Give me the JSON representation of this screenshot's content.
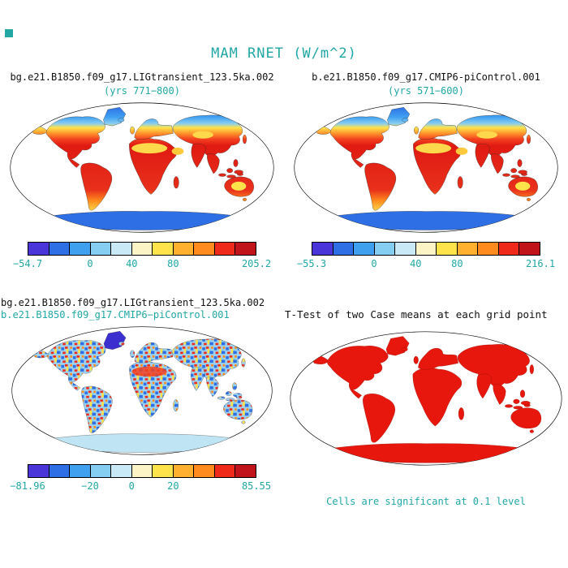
{
  "figure": {
    "title": "MAM RNET (W/m^2)",
    "accent_color": "#21a7a4",
    "land_red": "#e8170d"
  },
  "colorbar_colors": [
    "#4A35D9",
    "#2E6FE6",
    "#3FA0F0",
    "#86CDF2",
    "#C9E9F6",
    "#FCF4C5",
    "#FFE34B",
    "#FFB02E",
    "#FF8A1E",
    "#EF2A1B",
    "#C0131A"
  ],
  "panels": {
    "lig": {
      "title": "bg.e21.B1850.f09_g17.LIGtransient_123.5ka.002",
      "subtitle": "(yrs 771−800)",
      "ticks": [
        {
          "label": "−54.7",
          "pos": 0
        },
        {
          "label": "0",
          "pos": 27.3
        },
        {
          "label": "40",
          "pos": 45.5
        },
        {
          "label": "80",
          "pos": 63.6
        },
        {
          "label": "205.2",
          "pos": 100
        }
      ]
    },
    "pic": {
      "title": "b.e21.B1850.f09_g17.CMIP6-piControl.001",
      "subtitle": "(yrs 571−600)",
      "ticks": [
        {
          "label": "−55.3",
          "pos": 0
        },
        {
          "label": "0",
          "pos": 27.3
        },
        {
          "label": "40",
          "pos": 45.5
        },
        {
          "label": "80",
          "pos": 63.6
        },
        {
          "label": "216.1",
          "pos": 100
        }
      ]
    },
    "diff": {
      "title_line1": "bg.e21.B1850.f09_g17.LIGtransient_123.5ka.002",
      "title_line2": "b.e21.B1850.f09_g17.CMIP6−piControl.001",
      "ticks": [
        {
          "label": "−81.96",
          "pos": 0
        },
        {
          "label": "−20",
          "pos": 27.3
        },
        {
          "label": "0",
          "pos": 45.5
        },
        {
          "label": "20",
          "pos": 63.6
        },
        {
          "label": "85.55",
          "pos": 100
        }
      ]
    },
    "ttest": {
      "title": "T-Test of two Case means at each grid point",
      "note": "Cells are significant at 0.1 level"
    }
  },
  "chart_data": [
    {
      "type": "heatmap",
      "subtype": "global-map",
      "projection": "robinson",
      "variable": "MAM RNET (W/m^2)",
      "title": "bg.e21.B1850.f09_g17.LIGtransient_123.5ka.002",
      "subtitle": "(yrs 771−800)",
      "colorbar_ticks": [
        -54.7,
        0,
        40,
        80,
        205.2
      ],
      "value_range": [
        -54.7,
        205.2
      ],
      "legend_position": "bottom",
      "colorbar_colors": [
        "#4A35D9",
        "#2E6FE6",
        "#3FA0F0",
        "#86CDF2",
        "#C9E9F6",
        "#FCF4C5",
        "#FFE34B",
        "#FFB02E",
        "#FF8A1E",
        "#EF2A1B",
        "#C0131A"
      ]
    },
    {
      "type": "heatmap",
      "subtype": "global-map",
      "projection": "robinson",
      "variable": "MAM RNET (W/m^2)",
      "title": "b.e21.B1850.f09_g17.CMIP6-piControl.001",
      "subtitle": "(yrs 571−600)",
      "colorbar_ticks": [
        -55.3,
        0,
        40,
        80,
        216.1
      ],
      "value_range": [
        -55.3,
        216.1
      ],
      "legend_position": "bottom"
    },
    {
      "type": "heatmap",
      "subtype": "difference-map",
      "projection": "robinson",
      "variable": "MAM RNET (W/m^2)",
      "title": "bg.e21.B1850.f09_g17.LIGtransient_123.5ka.002 − b.e21.B1850.f09_g17.CMIP6-piControl.001",
      "colorbar_ticks": [
        -81.96,
        -20,
        0,
        20,
        85.55
      ],
      "value_range": [
        -81.96,
        85.55
      ],
      "legend_position": "bottom"
    },
    {
      "type": "heatmap",
      "subtype": "significance-map",
      "projection": "robinson",
      "title": "T-Test of two Case means at each grid point",
      "annotation": "Cells are significant at 0.1 level",
      "significance_level": 0.1,
      "significant_color": "#e8170d"
    }
  ]
}
